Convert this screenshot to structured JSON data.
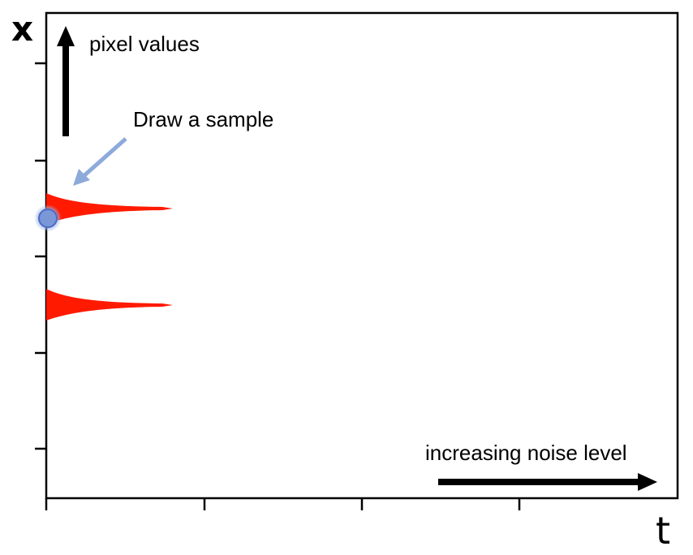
{
  "axes": {
    "y_label": "x",
    "x_label": "t"
  },
  "annotations": {
    "pixel_values": "pixel values",
    "draw_sample": "Draw a sample",
    "noise_level": "increasing noise level"
  },
  "distributions": {
    "count": 2,
    "color": "#ff1a00"
  },
  "sample_point": {
    "color": "#7b97d8",
    "outline": "#4a6cc4",
    "pointer_color": "#8eaadb"
  },
  "colors": {
    "axis": "#000000",
    "arrow": "#000000"
  }
}
